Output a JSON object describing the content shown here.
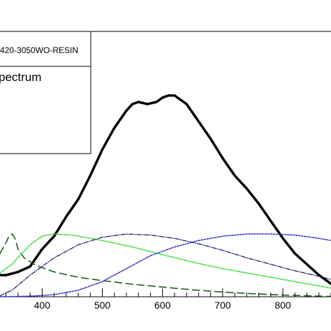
{
  "legend": {
    "title": "420-3050WO-RESIN",
    "entry": "pectrum"
  },
  "chart_data": {
    "type": "line",
    "xlim": [
      330,
      880
    ],
    "ylim": [
      0,
      1
    ],
    "x_ticks": [
      400,
      500,
      600,
      700,
      800
    ],
    "x_tick_labels": [
      "400",
      "500",
      "600",
      "700",
      "800"
    ],
    "grid": false,
    "series": [
      {
        "style": "solid-thick",
        "color": "#000000",
        "points": [
          [
            330,
            0.1
          ],
          [
            340,
            0.1
          ],
          [
            360,
            0.115
          ],
          [
            380,
            0.14
          ],
          [
            400,
            0.22
          ],
          [
            420,
            0.28
          ],
          [
            440,
            0.37
          ],
          [
            460,
            0.45
          ],
          [
            480,
            0.56
          ],
          [
            500,
            0.68
          ],
          [
            520,
            0.78
          ],
          [
            540,
            0.86
          ],
          [
            550,
            0.89
          ],
          [
            560,
            0.9
          ],
          [
            575,
            0.89
          ],
          [
            590,
            0.9
          ],
          [
            600,
            0.92
          ],
          [
            610,
            0.93
          ],
          [
            620,
            0.93
          ],
          [
            640,
            0.89
          ],
          [
            660,
            0.81
          ],
          [
            680,
            0.73
          ],
          [
            700,
            0.64
          ],
          [
            720,
            0.56
          ],
          [
            740,
            0.5
          ],
          [
            760,
            0.43
          ],
          [
            780,
            0.35
          ],
          [
            800,
            0.27
          ],
          [
            820,
            0.2
          ],
          [
            840,
            0.15
          ],
          [
            860,
            0.1
          ],
          [
            880,
            0.06
          ]
        ]
      },
      {
        "style": "dashed",
        "color": "#1a5e1a",
        "points": [
          [
            330,
            0.2
          ],
          [
            340,
            0.25
          ],
          [
            345,
            0.28
          ],
          [
            350,
            0.29
          ],
          [
            355,
            0.27
          ],
          [
            360,
            0.22
          ],
          [
            370,
            0.18
          ],
          [
            390,
            0.145
          ],
          [
            420,
            0.115
          ],
          [
            460,
            0.09
          ],
          [
            500,
            0.075
          ],
          [
            550,
            0.058
          ],
          [
            600,
            0.045
          ],
          [
            650,
            0.032
          ],
          [
            700,
            0.022
          ],
          [
            750,
            0.014
          ],
          [
            800,
            0.008
          ],
          [
            850,
            0.004
          ],
          [
            880,
            0.002
          ]
        ]
      },
      {
        "style": "dotted",
        "color": "#33dd33",
        "points": [
          [
            330,
            0.11
          ],
          [
            350,
            0.15
          ],
          [
            380,
            0.24
          ],
          [
            400,
            0.28
          ],
          [
            420,
            0.29
          ],
          [
            450,
            0.285
          ],
          [
            500,
            0.26
          ],
          [
            550,
            0.23
          ],
          [
            600,
            0.195
          ],
          [
            650,
            0.16
          ],
          [
            700,
            0.13
          ],
          [
            750,
            0.105
          ],
          [
            800,
            0.08
          ],
          [
            850,
            0.055
          ],
          [
            880,
            0.04
          ]
        ]
      },
      {
        "style": "dash-dot",
        "color": "#1a1a66",
        "points": [
          [
            330,
            0.005
          ],
          [
            350,
            0.03
          ],
          [
            380,
            0.1
          ],
          [
            420,
            0.18
          ],
          [
            460,
            0.24
          ],
          [
            500,
            0.275
          ],
          [
            540,
            0.29
          ],
          [
            580,
            0.285
          ],
          [
            620,
            0.27
          ],
          [
            660,
            0.245
          ],
          [
            700,
            0.215
          ],
          [
            740,
            0.18
          ],
          [
            780,
            0.15
          ],
          [
            820,
            0.12
          ],
          [
            860,
            0.095
          ],
          [
            880,
            0.08
          ]
        ]
      },
      {
        "style": "dotted",
        "color": "#3333cc",
        "points": [
          [
            330,
            0.0
          ],
          [
            380,
            0.003
          ],
          [
            420,
            0.01
          ],
          [
            460,
            0.03
          ],
          [
            500,
            0.07
          ],
          [
            540,
            0.13
          ],
          [
            580,
            0.19
          ],
          [
            620,
            0.23
          ],
          [
            660,
            0.26
          ],
          [
            700,
            0.28
          ],
          [
            740,
            0.29
          ],
          [
            780,
            0.29
          ],
          [
            820,
            0.285
          ],
          [
            860,
            0.27
          ],
          [
            880,
            0.26
          ]
        ]
      }
    ]
  }
}
